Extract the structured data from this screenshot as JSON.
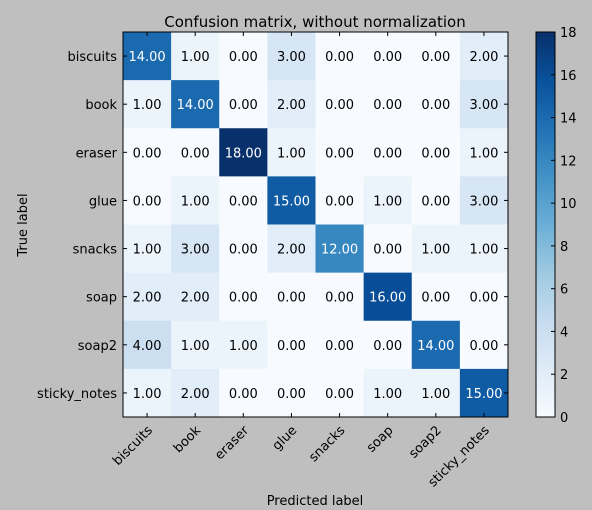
{
  "chart_data": {
    "type": "heatmap",
    "title": "Confusion matrix, without normalization",
    "xlabel": "Predicted label",
    "ylabel": "True label",
    "categories": [
      "biscuits",
      "book",
      "eraser",
      "glue",
      "snacks",
      "soap",
      "soap2",
      "sticky_notes"
    ],
    "matrix": [
      [
        14,
        1,
        0,
        3,
        0,
        0,
        0,
        2
      ],
      [
        1,
        14,
        0,
        2,
        0,
        0,
        0,
        3
      ],
      [
        0,
        0,
        18,
        1,
        0,
        0,
        0,
        1
      ],
      [
        0,
        1,
        0,
        15,
        0,
        1,
        0,
        3
      ],
      [
        1,
        3,
        0,
        2,
        12,
        0,
        1,
        1
      ],
      [
        2,
        2,
        0,
        0,
        0,
        16,
        0,
        0
      ],
      [
        4,
        1,
        1,
        0,
        0,
        0,
        14,
        0
      ],
      [
        1,
        2,
        0,
        0,
        0,
        1,
        1,
        15
      ]
    ],
    "value_format_decimals": 2,
    "colorbar": {
      "colormap": "Blues",
      "range": [
        0,
        18
      ],
      "ticks": [
        "0",
        "2",
        "4",
        "6",
        "8",
        "10",
        "12",
        "14",
        "16",
        "18"
      ]
    },
    "colors": {
      "background": "#bfbfbf",
      "light_text": "#ffffff",
      "dark_text": "#000000"
    }
  }
}
